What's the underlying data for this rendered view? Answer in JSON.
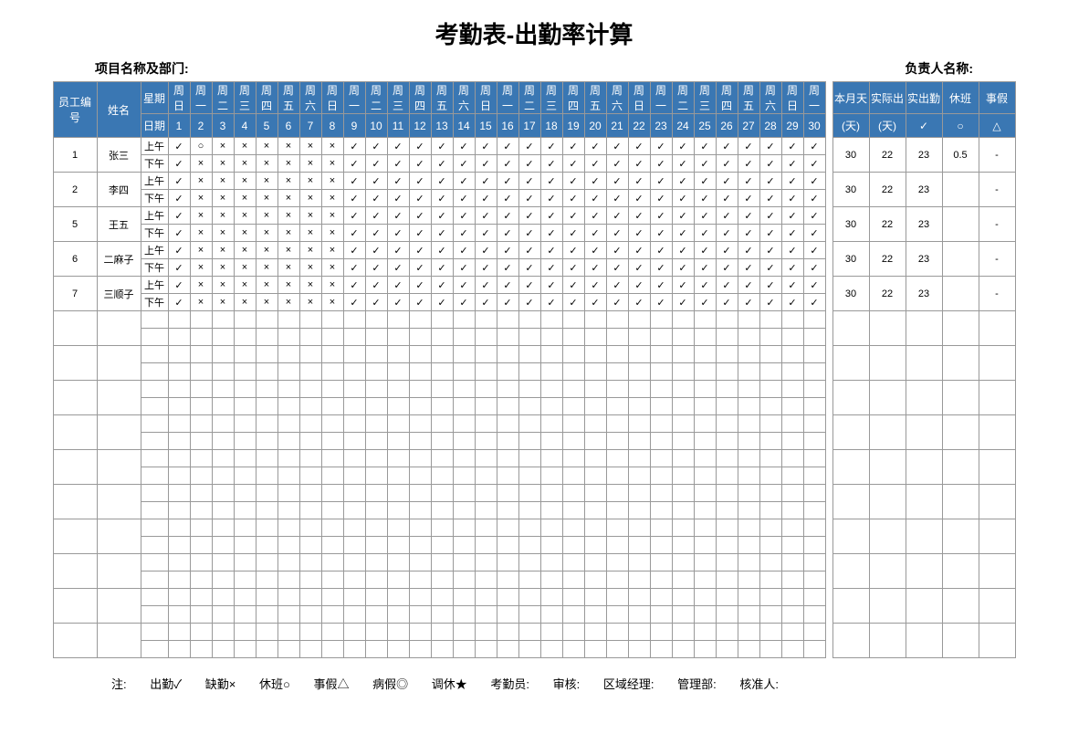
{
  "title": "考勤表-出勤率计算",
  "meta_left": "项目名称及部门:",
  "meta_right": "负责人名称:",
  "header": {
    "emp_id": "员工编号",
    "name": "姓名",
    "week_label": "星期",
    "date_label": "日期",
    "month_days": "本月天",
    "actual_out": "实际出",
    "actual_att": "实出勤",
    "overtime": "休班",
    "leave": "事假",
    "unit_day1": "(天)",
    "unit_day2": "(天)",
    "sym_check": "✓",
    "sym_circle": "○",
    "sym_tri": "△"
  },
  "weekdays": [
    "周日",
    "周一",
    "周二",
    "周三",
    "周四",
    "周五",
    "周六",
    "周日",
    "周一",
    "周二",
    "周三",
    "周四",
    "周五",
    "周六",
    "周日",
    "周一",
    "周二",
    "周三",
    "周四",
    "周五",
    "周六",
    "周日",
    "周一",
    "周二",
    "周三",
    "周四",
    "周五",
    "周六",
    "周日",
    "周一"
  ],
  "dates": [
    "1",
    "2",
    "3",
    "4",
    "5",
    "6",
    "7",
    "8",
    "9",
    "10",
    "11",
    "12",
    "13",
    "14",
    "15",
    "16",
    "17",
    "18",
    "19",
    "20",
    "21",
    "22",
    "23",
    "24",
    "25",
    "26",
    "27",
    "28",
    "29",
    "30"
  ],
  "shift_am": "上午",
  "shift_pm": "下午",
  "employees": [
    {
      "id": "1",
      "name": "张三",
      "am": [
        "✓",
        "○",
        "×",
        "×",
        "×",
        "×",
        "×",
        "×",
        "✓",
        "✓",
        "✓",
        "✓",
        "✓",
        "✓",
        "✓",
        "✓",
        "✓",
        "✓",
        "✓",
        "✓",
        "✓",
        "✓",
        "✓",
        "✓",
        "✓",
        "✓",
        "✓",
        "✓",
        "✓",
        "✓"
      ],
      "pm": [
        "✓",
        "×",
        "×",
        "×",
        "×",
        "×",
        "×",
        "×",
        "✓",
        "✓",
        "✓",
        "✓",
        "✓",
        "✓",
        "✓",
        "✓",
        "✓",
        "✓",
        "✓",
        "✓",
        "✓",
        "✓",
        "✓",
        "✓",
        "✓",
        "✓",
        "✓",
        "✓",
        "✓",
        "✓"
      ],
      "sum": [
        "30",
        "22",
        "23",
        "0.5",
        "-"
      ]
    },
    {
      "id": "2",
      "name": "李四",
      "am": [
        "✓",
        "×",
        "×",
        "×",
        "×",
        "×",
        "×",
        "×",
        "✓",
        "✓",
        "✓",
        "✓",
        "✓",
        "✓",
        "✓",
        "✓",
        "✓",
        "✓",
        "✓",
        "✓",
        "✓",
        "✓",
        "✓",
        "✓",
        "✓",
        "✓",
        "✓",
        "✓",
        "✓",
        "✓"
      ],
      "pm": [
        "✓",
        "×",
        "×",
        "×",
        "×",
        "×",
        "×",
        "×",
        "✓",
        "✓",
        "✓",
        "✓",
        "✓",
        "✓",
        "✓",
        "✓",
        "✓",
        "✓",
        "✓",
        "✓",
        "✓",
        "✓",
        "✓",
        "✓",
        "✓",
        "✓",
        "✓",
        "✓",
        "✓",
        "✓"
      ],
      "sum": [
        "30",
        "22",
        "23",
        "",
        "-"
      ]
    },
    {
      "id": "5",
      "name": "王五",
      "am": [
        "✓",
        "×",
        "×",
        "×",
        "×",
        "×",
        "×",
        "×",
        "✓",
        "✓",
        "✓",
        "✓",
        "✓",
        "✓",
        "✓",
        "✓",
        "✓",
        "✓",
        "✓",
        "✓",
        "✓",
        "✓",
        "✓",
        "✓",
        "✓",
        "✓",
        "✓",
        "✓",
        "✓",
        "✓"
      ],
      "pm": [
        "✓",
        "×",
        "×",
        "×",
        "×",
        "×",
        "×",
        "×",
        "✓",
        "✓",
        "✓",
        "✓",
        "✓",
        "✓",
        "✓",
        "✓",
        "✓",
        "✓",
        "✓",
        "✓",
        "✓",
        "✓",
        "✓",
        "✓",
        "✓",
        "✓",
        "✓",
        "✓",
        "✓",
        "✓"
      ],
      "sum": [
        "30",
        "22",
        "23",
        "",
        "-"
      ]
    },
    {
      "id": "6",
      "name": "二麻子",
      "am": [
        "✓",
        "×",
        "×",
        "×",
        "×",
        "×",
        "×",
        "×",
        "✓",
        "✓",
        "✓",
        "✓",
        "✓",
        "✓",
        "✓",
        "✓",
        "✓",
        "✓",
        "✓",
        "✓",
        "✓",
        "✓",
        "✓",
        "✓",
        "✓",
        "✓",
        "✓",
        "✓",
        "✓",
        "✓"
      ],
      "pm": [
        "✓",
        "×",
        "×",
        "×",
        "×",
        "×",
        "×",
        "×",
        "✓",
        "✓",
        "✓",
        "✓",
        "✓",
        "✓",
        "✓",
        "✓",
        "✓",
        "✓",
        "✓",
        "✓",
        "✓",
        "✓",
        "✓",
        "✓",
        "✓",
        "✓",
        "✓",
        "✓",
        "✓",
        "✓"
      ],
      "sum": [
        "30",
        "22",
        "23",
        "",
        "-"
      ]
    },
    {
      "id": "7",
      "name": "三顺子",
      "am": [
        "✓",
        "×",
        "×",
        "×",
        "×",
        "×",
        "×",
        "×",
        "✓",
        "✓",
        "✓",
        "✓",
        "✓",
        "✓",
        "✓",
        "✓",
        "✓",
        "✓",
        "✓",
        "✓",
        "✓",
        "✓",
        "✓",
        "✓",
        "✓",
        "✓",
        "✓",
        "✓",
        "✓",
        "✓"
      ],
      "pm": [
        "✓",
        "×",
        "×",
        "×",
        "×",
        "×",
        "×",
        "×",
        "✓",
        "✓",
        "✓",
        "✓",
        "✓",
        "✓",
        "✓",
        "✓",
        "✓",
        "✓",
        "✓",
        "✓",
        "✓",
        "✓",
        "✓",
        "✓",
        "✓",
        "✓",
        "✓",
        "✓",
        "✓",
        "✓"
      ],
      "sum": [
        "30",
        "22",
        "23",
        "",
        "-"
      ]
    }
  ],
  "empty_rows": 10,
  "footer": {
    "note": "注:",
    "attend": "出勤✓",
    "absent": "缺勤×",
    "rest": "休班○",
    "personal": "事假△",
    "sick": "病假◎",
    "swap": "调休★",
    "clerk": "考勤员:",
    "review": "审核:",
    "region": "区域经理:",
    "mgmt": "管理部:",
    "approve": "核准人:"
  },
  "colors": {
    "header_bg": "#3a77b3",
    "header_fg": "#ffffff",
    "border": "#999999",
    "bg": "#ffffff"
  }
}
